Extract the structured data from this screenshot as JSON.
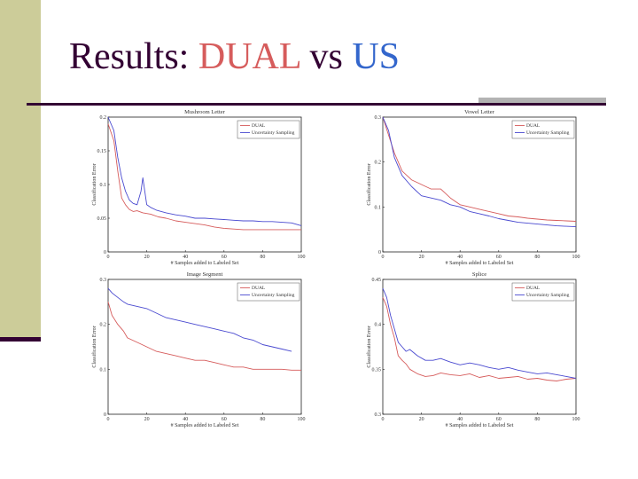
{
  "slide": {
    "title_prefix": "Results: ",
    "title_dual": "DUAL",
    "title_vs": " vs ",
    "title_us": "US"
  },
  "colors": {
    "dual": "#d65c5c",
    "us": "#4a4ad0",
    "title_dark": "#330033",
    "side_bar": "#cccc99"
  },
  "chart_data": [
    {
      "type": "line",
      "title": "Mushroom Letter",
      "xlabel": "# Samples added to Labeled Set",
      "ylabel": "Classification Error",
      "xlim": [
        0,
        100
      ],
      "ylim": [
        0,
        0.2
      ],
      "xticks": [
        "0",
        "20",
        "40",
        "60",
        "80",
        "100"
      ],
      "yticks": [
        "0",
        "0.05",
        "0.1",
        "0.15",
        "0.2"
      ],
      "legend": "top-right",
      "series": [
        {
          "name": "DUAL",
          "color": "#d65c5c",
          "x": [
            0,
            3,
            5,
            7,
            9,
            11,
            13,
            15,
            18,
            22,
            26,
            30,
            35,
            40,
            45,
            50,
            55,
            60,
            65,
            70,
            75,
            80,
            85,
            90,
            95,
            100
          ],
          "y": [
            0.19,
            0.165,
            0.12,
            0.08,
            0.07,
            0.063,
            0.06,
            0.061,
            0.058,
            0.056,
            0.052,
            0.05,
            0.046,
            0.044,
            0.042,
            0.04,
            0.037,
            0.035,
            0.034,
            0.033,
            0.033,
            0.033,
            0.033,
            0.033,
            0.033,
            0.033
          ]
        },
        {
          "name": "Uncertainty Sampling",
          "color": "#4a4ad0",
          "x": [
            0,
            3,
            5,
            7,
            9,
            11,
            13,
            15,
            17,
            18,
            20,
            22,
            25,
            30,
            35,
            40,
            45,
            50,
            55,
            60,
            65,
            70,
            75,
            80,
            85,
            90,
            95,
            100
          ],
          "y": [
            0.2,
            0.18,
            0.14,
            0.11,
            0.09,
            0.077,
            0.072,
            0.07,
            0.09,
            0.11,
            0.07,
            0.066,
            0.062,
            0.058,
            0.055,
            0.053,
            0.05,
            0.05,
            0.049,
            0.048,
            0.047,
            0.046,
            0.046,
            0.045,
            0.045,
            0.044,
            0.043,
            0.039
          ]
        }
      ]
    },
    {
      "type": "line",
      "title": "Vowel Letter",
      "xlabel": "# Samples added to Labeled Set",
      "ylabel": "Classification Error",
      "xlim": [
        0,
        100
      ],
      "ylim": [
        0,
        0.3
      ],
      "xticks": [
        "0",
        "20",
        "40",
        "60",
        "80",
        "100"
      ],
      "yticks": [
        "0",
        "0.1",
        "0.2",
        "0.3"
      ],
      "legend": "top-right",
      "series": [
        {
          "name": "DUAL",
          "color": "#d65c5c",
          "x": [
            0,
            3,
            6,
            10,
            15,
            20,
            25,
            30,
            35,
            40,
            45,
            50,
            55,
            60,
            65,
            70,
            75,
            80,
            85,
            90,
            95,
            100
          ],
          "y": [
            0.3,
            0.26,
            0.22,
            0.18,
            0.16,
            0.15,
            0.14,
            0.14,
            0.12,
            0.105,
            0.1,
            0.095,
            0.09,
            0.085,
            0.08,
            0.078,
            0.075,
            0.073,
            0.071,
            0.07,
            0.069,
            0.068
          ]
        },
        {
          "name": "Uncertainty Sampling",
          "color": "#4a4ad0",
          "x": [
            0,
            3,
            6,
            10,
            15,
            20,
            25,
            30,
            35,
            40,
            45,
            50,
            55,
            60,
            65,
            70,
            75,
            80,
            85,
            90,
            95,
            100
          ],
          "y": [
            0.3,
            0.27,
            0.21,
            0.17,
            0.145,
            0.125,
            0.12,
            0.115,
            0.105,
            0.1,
            0.09,
            0.085,
            0.08,
            0.074,
            0.07,
            0.066,
            0.064,
            0.062,
            0.06,
            0.058,
            0.057,
            0.056
          ]
        }
      ]
    },
    {
      "type": "line",
      "title": "Image Segment",
      "xlabel": "# Samples added to Labeled Set",
      "ylabel": "Classification Error",
      "xlim": [
        0,
        100
      ],
      "ylim": [
        0,
        0.3
      ],
      "xticks": [
        "0",
        "20",
        "40",
        "60",
        "80",
        "100"
      ],
      "yticks": [
        "0",
        "0.1",
        "0.2",
        "0.3"
      ],
      "legend": "top-right",
      "series": [
        {
          "name": "DUAL",
          "color": "#d65c5c",
          "x": [
            0,
            2,
            5,
            8,
            10,
            15,
            20,
            25,
            30,
            35,
            40,
            45,
            50,
            55,
            60,
            65,
            70,
            75,
            80,
            85,
            90,
            95,
            100
          ],
          "y": [
            0.25,
            0.22,
            0.2,
            0.185,
            0.17,
            0.16,
            0.15,
            0.14,
            0.135,
            0.13,
            0.125,
            0.12,
            0.12,
            0.115,
            0.11,
            0.105,
            0.105,
            0.1,
            0.1,
            0.1,
            0.1,
            0.098,
            0.098
          ]
        },
        {
          "name": "Uncertainty Sampling",
          "color": "#4a4ad0",
          "x": [
            0,
            2,
            5,
            8,
            10,
            15,
            20,
            25,
            30,
            35,
            40,
            45,
            50,
            55,
            60,
            65,
            70,
            75,
            80,
            85,
            90,
            95
          ],
          "y": [
            0.28,
            0.27,
            0.26,
            0.25,
            0.245,
            0.24,
            0.235,
            0.225,
            0.215,
            0.21,
            0.205,
            0.2,
            0.195,
            0.19,
            0.185,
            0.18,
            0.17,
            0.165,
            0.155,
            0.15,
            0.145,
            0.14
          ]
        }
      ]
    },
    {
      "type": "line",
      "title": "Splice",
      "xlabel": "# Samples added to Labeled Set",
      "ylabel": "Classification Error",
      "xlim": [
        0,
        100
      ],
      "ylim": [
        0.3,
        0.45
      ],
      "xticks": [
        "0",
        "20",
        "40",
        "60",
        "80",
        "100"
      ],
      "yticks": [
        "0.3",
        "0.35",
        "0.4",
        "0.45"
      ],
      "legend": "top-right",
      "series": [
        {
          "name": "DUAL",
          "color": "#d65c5c",
          "x": [
            0,
            2,
            4,
            6,
            8,
            10,
            12,
            14,
            18,
            22,
            26,
            30,
            35,
            40,
            45,
            50,
            55,
            60,
            65,
            70,
            75,
            80,
            85,
            90,
            95,
            100
          ],
          "y": [
            0.43,
            0.42,
            0.4,
            0.385,
            0.365,
            0.36,
            0.356,
            0.35,
            0.345,
            0.342,
            0.343,
            0.346,
            0.344,
            0.343,
            0.345,
            0.341,
            0.343,
            0.34,
            0.341,
            0.342,
            0.339,
            0.34,
            0.338,
            0.337,
            0.339,
            0.34
          ]
        },
        {
          "name": "Uncertainty Sampling",
          "color": "#4a4ad0",
          "x": [
            0,
            2,
            4,
            6,
            8,
            10,
            12,
            14,
            18,
            22,
            26,
            30,
            35,
            40,
            45,
            50,
            55,
            60,
            65,
            70,
            75,
            80,
            85,
            90,
            95,
            100
          ],
          "y": [
            0.44,
            0.43,
            0.41,
            0.395,
            0.38,
            0.375,
            0.37,
            0.372,
            0.365,
            0.36,
            0.36,
            0.362,
            0.358,
            0.355,
            0.357,
            0.355,
            0.352,
            0.35,
            0.352,
            0.349,
            0.347,
            0.345,
            0.346,
            0.344,
            0.342,
            0.34
          ]
        }
      ]
    }
  ]
}
